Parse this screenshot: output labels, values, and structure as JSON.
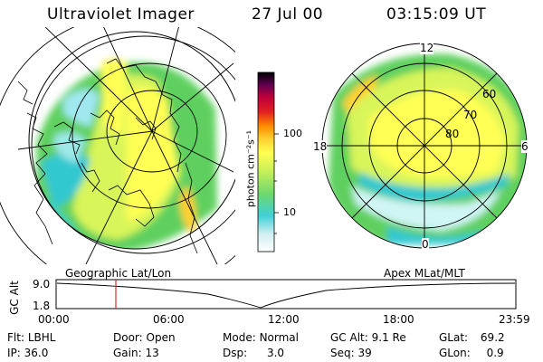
{
  "header": {
    "instrument": "Ultraviolet Imager",
    "date": "27 Jul 00",
    "time": "03:15:09 UT"
  },
  "left_map": {
    "label": "Geographic Lat/Lon"
  },
  "right_map": {
    "label": "Apex MLat/MLT",
    "mlt_labels": {
      "top": "12",
      "left": "18",
      "right": "6",
      "bottom": "0"
    },
    "lat_labels": [
      "60",
      "70",
      "80"
    ]
  },
  "colorbar": {
    "unit": "photon cm⁻²s⁻¹",
    "ticks": [
      "100",
      "10"
    ],
    "colors": [
      "#ffffff",
      "#cfeef0",
      "#40d0d8",
      "#6cd86c",
      "#c8f05a",
      "#ffff50",
      "#ffd030",
      "#ff8c00",
      "#e02020",
      "#c0003a",
      "#600050",
      "#000000"
    ]
  },
  "altitude_plot": {
    "ylabel": "GC Alt",
    "y_ticks": [
      "9.0",
      "1.8"
    ],
    "x_ticks": [
      "00:00",
      "06:00",
      "12:00",
      "18:00",
      "23:59"
    ],
    "marker_color": "#d03030"
  },
  "footer": {
    "row1": [
      {
        "label": "Flt:",
        "value": "LBHL"
      },
      {
        "label": "Door:",
        "value": "Open"
      },
      {
        "label": "Mode:",
        "value": "Normal"
      },
      {
        "label": "GC Alt:",
        "value": "9.1 Re"
      },
      {
        "label": "GLat:",
        "value": "69.2"
      }
    ],
    "row2": [
      {
        "label": "IP:",
        "value": "36.0"
      },
      {
        "label": "Gain:",
        "value": "13"
      },
      {
        "label": "Dsp:",
        "value": "3.0"
      },
      {
        "label": "Seq:",
        "value": "39"
      },
      {
        "label": "GLon:",
        "value": "0.9"
      }
    ]
  }
}
